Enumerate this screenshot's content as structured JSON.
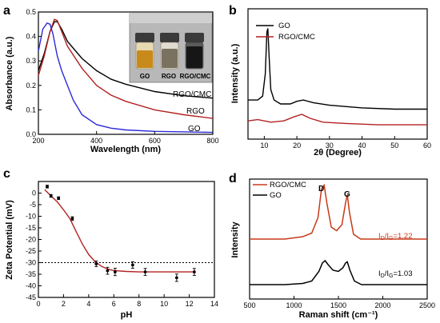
{
  "colors": {
    "black": "#000000",
    "red": "#b22222",
    "blue": "#2a2ad8",
    "orange": "#c73a1a"
  },
  "chart_data": [
    {
      "panel": "a",
      "type": "line",
      "xlabel": "Wavelength (nm)",
      "ylabel": "Absorbance (a.u.)",
      "xlim": [
        200,
        800
      ],
      "ylim": [
        0.0,
        0.5
      ],
      "xticks": [
        "200",
        "400",
        "600",
        "800"
      ],
      "yticks": [
        "0.0",
        "0.1",
        "0.2",
        "0.3",
        "0.4",
        "0.5"
      ],
      "inset_labels": [
        "GO",
        "RGO",
        "RGO/CMC"
      ],
      "series": [
        {
          "name": "RGO/CMC",
          "color": "#000000",
          "x": [
            200,
            220,
            240,
            255,
            265,
            280,
            300,
            350,
            400,
            450,
            500,
            600,
            700,
            800
          ],
          "y": [
            0.26,
            0.33,
            0.42,
            0.46,
            0.46,
            0.43,
            0.38,
            0.31,
            0.26,
            0.225,
            0.205,
            0.175,
            0.158,
            0.148
          ]
        },
        {
          "name": "RGO",
          "color": "#b22222",
          "x": [
            200,
            220,
            240,
            255,
            265,
            280,
            300,
            350,
            400,
            450,
            500,
            600,
            700,
            800
          ],
          "y": [
            0.24,
            0.32,
            0.42,
            0.47,
            0.465,
            0.42,
            0.36,
            0.27,
            0.2,
            0.16,
            0.135,
            0.1,
            0.08,
            0.065
          ]
        },
        {
          "name": "GO",
          "color": "#2a2ad8",
          "x": [
            200,
            215,
            230,
            240,
            250,
            265,
            280,
            300,
            320,
            350,
            400,
            450,
            500,
            600,
            700,
            800
          ],
          "y": [
            0.34,
            0.43,
            0.455,
            0.45,
            0.41,
            0.32,
            0.26,
            0.2,
            0.14,
            0.08,
            0.04,
            0.025,
            0.018,
            0.012,
            0.01,
            0.008
          ]
        }
      ]
    },
    {
      "panel": "b",
      "type": "line",
      "xlabel": "2θ (Degree)",
      "ylabel": "Intensity (a.u.)",
      "xlim": [
        5,
        60
      ],
      "xticks": [
        "10",
        "20",
        "30",
        "40",
        "50",
        "60"
      ],
      "legend": [
        "GO",
        "RGO/CMC"
      ],
      "series": [
        {
          "name": "GO",
          "color": "#000000",
          "x": [
            5,
            8,
            9.5,
            10.3,
            10.8,
            11.1,
            11.5,
            12,
            13,
            15,
            18,
            20,
            22,
            25,
            30,
            40,
            50,
            60
          ],
          "y": [
            0.3,
            0.3,
            0.33,
            0.5,
            0.82,
            0.85,
            0.62,
            0.38,
            0.3,
            0.27,
            0.27,
            0.29,
            0.3,
            0.28,
            0.26,
            0.24,
            0.23,
            0.23
          ]
        },
        {
          "name": "RGO/CMC",
          "color": "#b22222",
          "x": [
            5,
            8,
            12,
            16,
            19,
            21.5,
            24,
            28,
            35,
            45,
            60
          ],
          "y": [
            0.14,
            0.15,
            0.13,
            0.14,
            0.17,
            0.19,
            0.16,
            0.13,
            0.12,
            0.11,
            0.11
          ]
        }
      ]
    },
    {
      "panel": "c",
      "type": "scatter",
      "xlabel": "pH",
      "ylabel": "Zeta Potential (mV)",
      "xlim": [
        0,
        14
      ],
      "ylim": [
        -45,
        5
      ],
      "xticks": [
        "0",
        "2",
        "4",
        "6",
        "8",
        "10",
        "12",
        "14"
      ],
      "yticks": [
        "0",
        "-5",
        "-10",
        "-15",
        "-20",
        "-25",
        "-30",
        "-35",
        "-40",
        "-45"
      ],
      "reference_line_y": -30,
      "points": {
        "x": [
          0.7,
          1.0,
          1.6,
          2.7,
          4.6,
          5.5,
          6.1,
          7.5,
          8.5,
          11.0,
          12.4
        ],
        "y": [
          2.8,
          -1.2,
          -2.2,
          -11,
          -30.5,
          -33.5,
          -34,
          -31,
          -34,
          -36.5,
          -34
        ]
      },
      "errors": [
        0.6,
        0.6,
        0.6,
        0.8,
        1.2,
        1.5,
        1.6,
        1.4,
        1.5,
        1.6,
        1.5
      ],
      "fit": {
        "x": [
          0.5,
          1.0,
          1.5,
          2.0,
          2.5,
          3.0,
          3.5,
          4.0,
          4.5,
          5.0,
          5.5,
          6.0,
          7.0,
          8.0,
          10.0,
          12.5
        ],
        "y": [
          1.5,
          -1.2,
          -3.8,
          -7.2,
          -11,
          -16.5,
          -22,
          -26.5,
          -29.5,
          -31.5,
          -32.8,
          -33.4,
          -33.8,
          -34,
          -34,
          -34
        ]
      }
    },
    {
      "panel": "d",
      "type": "line",
      "xlabel": "Raman shift (cm⁻¹)",
      "ylabel": "Intensity",
      "xlim": [
        500,
        2500
      ],
      "xticks": [
        "500",
        "1000",
        "1500",
        "2000",
        "2500"
      ],
      "legend": [
        "RGO/CMC",
        "GO"
      ],
      "peak_labels": [
        "D",
        "G"
      ],
      "ratios": {
        "RGO/CMC": "1.22",
        "GO": "1.03"
      },
      "series": [
        {
          "name": "RGO/CMC",
          "color": "#c73a1a",
          "x": [
            500,
            900,
            1100,
            1200,
            1270,
            1310,
            1340,
            1370,
            1420,
            1480,
            1540,
            1580,
            1600,
            1625,
            1670,
            1750,
            2000,
            2500
          ],
          "y": [
            0.5,
            0.5,
            0.52,
            0.55,
            0.68,
            0.92,
            0.95,
            0.8,
            0.6,
            0.57,
            0.62,
            0.8,
            0.87,
            0.72,
            0.54,
            0.5,
            0.5,
            0.5
          ]
        },
        {
          "name": "GO",
          "color": "#000000",
          "x": [
            500,
            900,
            1100,
            1200,
            1280,
            1320,
            1350,
            1380,
            1440,
            1500,
            1550,
            1580,
            1600,
            1630,
            1680,
            1760,
            2000,
            2500
          ],
          "y": [
            0.12,
            0.12,
            0.13,
            0.15,
            0.23,
            0.3,
            0.32,
            0.29,
            0.24,
            0.23,
            0.26,
            0.3,
            0.31,
            0.24,
            0.15,
            0.12,
            0.12,
            0.12
          ]
        }
      ]
    }
  ]
}
